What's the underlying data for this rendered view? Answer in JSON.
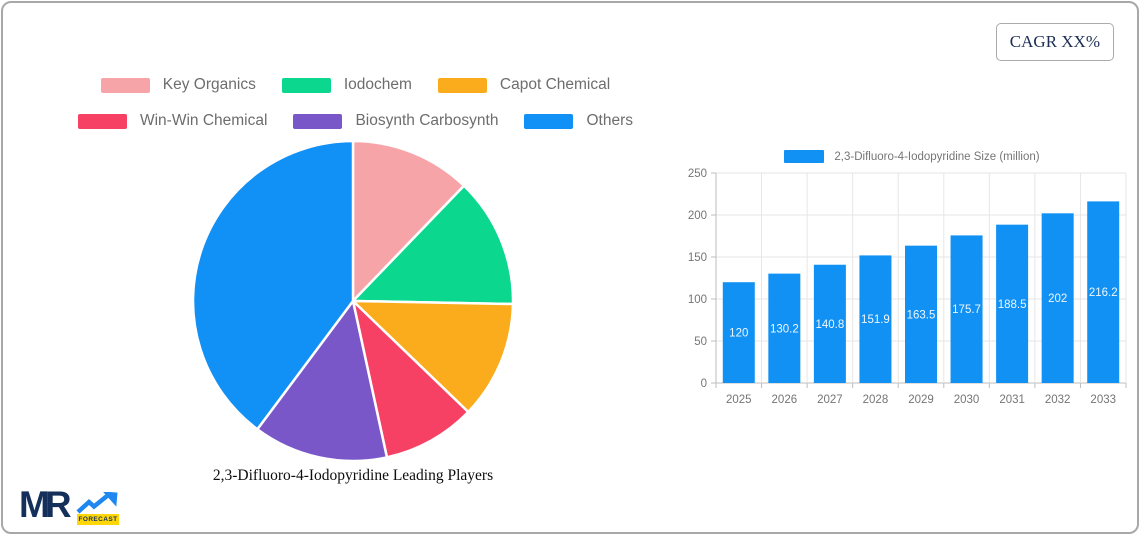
{
  "cagr_badge": "CAGR XX%",
  "logo": {
    "text": "MR",
    "badge": "FORECAST"
  },
  "chart_data": [
    {
      "type": "pie",
      "title": "2,3-Difluoro-4-Iodopyridine Leading Players",
      "labels": [
        "Key Organics",
        "Iodochem",
        "Capot Chemical",
        "Win-Win Chemical",
        "Biosynth Carbosynth",
        "Others"
      ],
      "values": [
        12.2,
        13.1,
        11.9,
        9.4,
        13.6,
        39.8
      ],
      "colors": [
        "#f7a4a8",
        "#0bd78f",
        "#fbac1c",
        "#f64164",
        "#7a57c9",
        "#1190f5"
      ],
      "legend_position": "top",
      "start_angle_deg": 0,
      "direction": "clockwise"
    },
    {
      "type": "bar",
      "series_name": "2,3-Difluoro-4-Iodopyridine Size (million)",
      "categories": [
        "2025",
        "2026",
        "2027",
        "2028",
        "2029",
        "2030",
        "2031",
        "2032",
        "2033"
      ],
      "values": [
        120,
        130.2,
        140.8,
        151.9,
        163.5,
        175.7,
        188.5,
        202,
        216.2
      ],
      "y_ticks": [
        0,
        50,
        100,
        150,
        200,
        250
      ],
      "ylim": [
        0,
        250
      ],
      "bar_color": "#1191f4",
      "grid": true,
      "grid_color": "#e6e6e6",
      "axis_color": "#bdbdbd",
      "legend_position": "top",
      "value_labels": "inside-center"
    }
  ]
}
